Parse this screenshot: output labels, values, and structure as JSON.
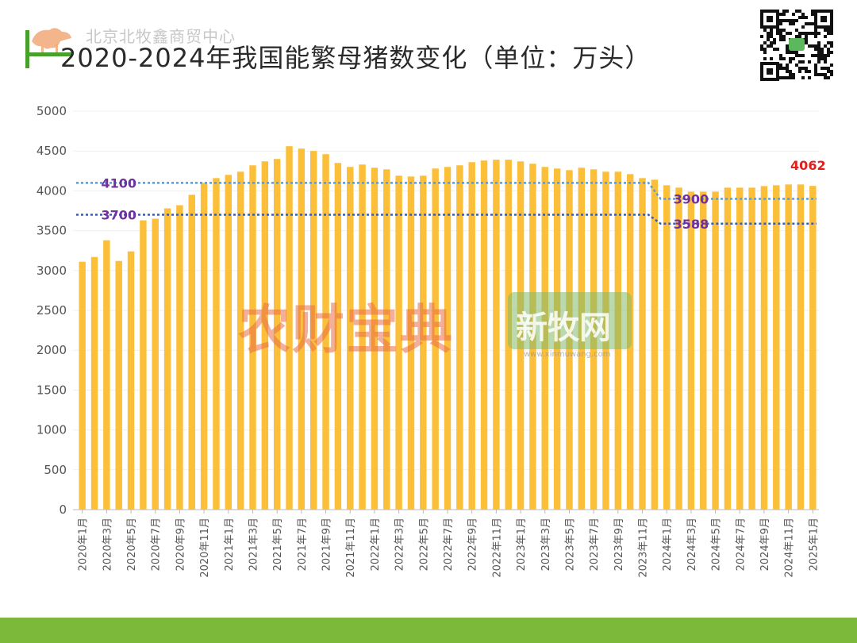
{
  "header": {
    "company": "北京北牧鑫商贸中心",
    "title": "2020-2024年我国能繁母猪数变化（单位：万头）"
  },
  "watermarks": {
    "brand1": "农财宝典",
    "brand2": "新牧网",
    "brand2_sub": "www.xinmuwang.com"
  },
  "colors": {
    "bar": "#fbbf3a",
    "ref_line": "#5b9bd5",
    "ref_line_dark": "#3a5bb0",
    "ref_label": "#7030a0",
    "last_label": "#e0201c",
    "footer": "#7cb83a",
    "logo_green": "#4aa02c",
    "logo_orange": "#f0a878"
  },
  "chart_data": {
    "type": "bar",
    "title": "2020-2024年我国能繁母猪数变化（单位：万头）",
    "ylim": [
      0,
      5000
    ],
    "y_ticks": [
      0,
      500,
      1000,
      1500,
      2000,
      2500,
      3000,
      3500,
      4000,
      4500,
      5000
    ],
    "grid": true,
    "categories": [
      "2020年1月",
      "2020年2月",
      "2020年3月",
      "2020年4月",
      "2020年5月",
      "2020年6月",
      "2020年7月",
      "2020年8月",
      "2020年9月",
      "2020年10月",
      "2020年11月",
      "2020年12月",
      "2021年1月",
      "2021年2月",
      "2021年3月",
      "2021年4月",
      "2021年5月",
      "2021年6月",
      "2021年7月",
      "2021年8月",
      "2021年9月",
      "2021年10月",
      "2021年11月",
      "2021年12月",
      "2022年1月",
      "2022年2月",
      "2022年3月",
      "2022年4月",
      "2022年5月",
      "2022年6月",
      "2022年7月",
      "2022年8月",
      "2022年9月",
      "2022年10月",
      "2022年11月",
      "2022年12月",
      "2023年1月",
      "2023年2月",
      "2023年3月",
      "2023年4月",
      "2023年5月",
      "2023年6月",
      "2023年7月",
      "2023年8月",
      "2023年9月",
      "2023年10月",
      "2023年11月",
      "2023年12月",
      "2024年1月",
      "2024年2月",
      "2024年3月",
      "2024年4月",
      "2024年5月",
      "2024年6月",
      "2024年7月",
      "2024年8月",
      "2024年9月",
      "2024年10月",
      "2024年11月",
      "2024年12月",
      "2025年1月"
    ],
    "tick_labels": [
      "2020年1月",
      "2020年3月",
      "2020年5月",
      "2020年7月",
      "2020年9月",
      "2020年11月",
      "2021年1月",
      "2021年3月",
      "2021年5月",
      "2021年7月",
      "2021年9月",
      "2021年11月",
      "2022年1月",
      "2022年3月",
      "2022年5月",
      "2022年7月",
      "2022年9月",
      "2022年11月",
      "2023年1月",
      "2023年3月",
      "2023年5月",
      "2023年7月",
      "2023年9月",
      "2023年11月",
      "2024年1月",
      "2024年3月",
      "2024年5月",
      "2024年7月",
      "2024年9月",
      "2024年11月",
      "2025年1月"
    ],
    "values": [
      3110,
      3170,
      3380,
      3120,
      3240,
      3630,
      3650,
      3780,
      3820,
      3950,
      4100,
      4160,
      4200,
      4240,
      4320,
      4370,
      4400,
      4560,
      4530,
      4500,
      4460,
      4350,
      4300,
      4330,
      4290,
      4270,
      4190,
      4180,
      4190,
      4280,
      4300,
      4320,
      4360,
      4380,
      4390,
      4390,
      4370,
      4340,
      4300,
      4280,
      4260,
      4290,
      4270,
      4240,
      4240,
      4210,
      4160,
      4140,
      4070,
      4040,
      3990,
      3990,
      3990,
      4040,
      4040,
      4040,
      4060,
      4070,
      4080,
      4080,
      4062
    ],
    "reference_lines": [
      {
        "label": "4100",
        "segments": [
          {
            "from": 0,
            "to": 46,
            "y": 4100
          },
          {
            "from": 47,
            "to": 60,
            "y": 3900
          }
        ]
      },
      {
        "label": "3700",
        "segments": [
          {
            "from": 0,
            "to": 46,
            "y": 3700
          },
          {
            "from": 47,
            "to": 60,
            "y": 3588
          }
        ]
      }
    ],
    "ref_labels": [
      {
        "text": "4100",
        "x_index": 3,
        "y": 4100
      },
      {
        "text": "3700",
        "x_index": 3,
        "y": 3700
      },
      {
        "text": "3900",
        "x_index": 50,
        "y": 3900
      },
      {
        "text": "3588",
        "x_index": 50,
        "y": 3588
      }
    ],
    "annotations": [
      {
        "text": "4062",
        "x_index": 60,
        "y": 4062
      }
    ]
  }
}
